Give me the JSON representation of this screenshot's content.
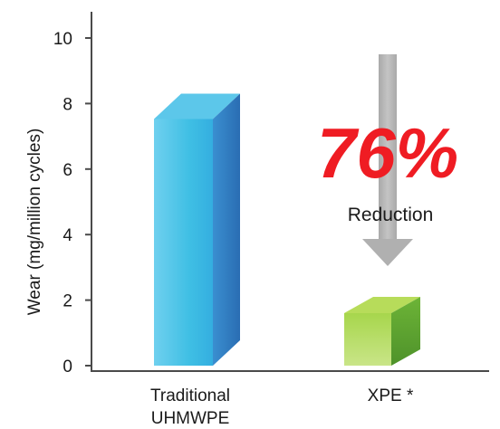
{
  "chart_data": {
    "type": "bar",
    "categories": [
      "Traditional UHMWPE",
      "XPE *"
    ],
    "category_lines": [
      [
        "Traditional",
        "UHMWPE"
      ],
      [
        "XPE *"
      ]
    ],
    "values": [
      8.3,
      2.1
    ],
    "ylabel": "Wear  (mg/million cycles)",
    "ylim": [
      0,
      10
    ],
    "yticks": [
      "0",
      "2",
      "4",
      "6",
      "8",
      "10"
    ],
    "grid": false,
    "annotation": {
      "headline": "76%",
      "subtitle": "Reduction"
    },
    "colors": {
      "bar1_front": "#3fbfe4",
      "bar1_side": "#2f7cc0",
      "bar1_top": "#5cc7ea",
      "bar2_front": "#9bcf45",
      "bar2_side": "#5aa02f",
      "bar2_top": "#b7dc5a",
      "arrow": "#b5b5b5",
      "headline": "#ef1c23"
    }
  }
}
